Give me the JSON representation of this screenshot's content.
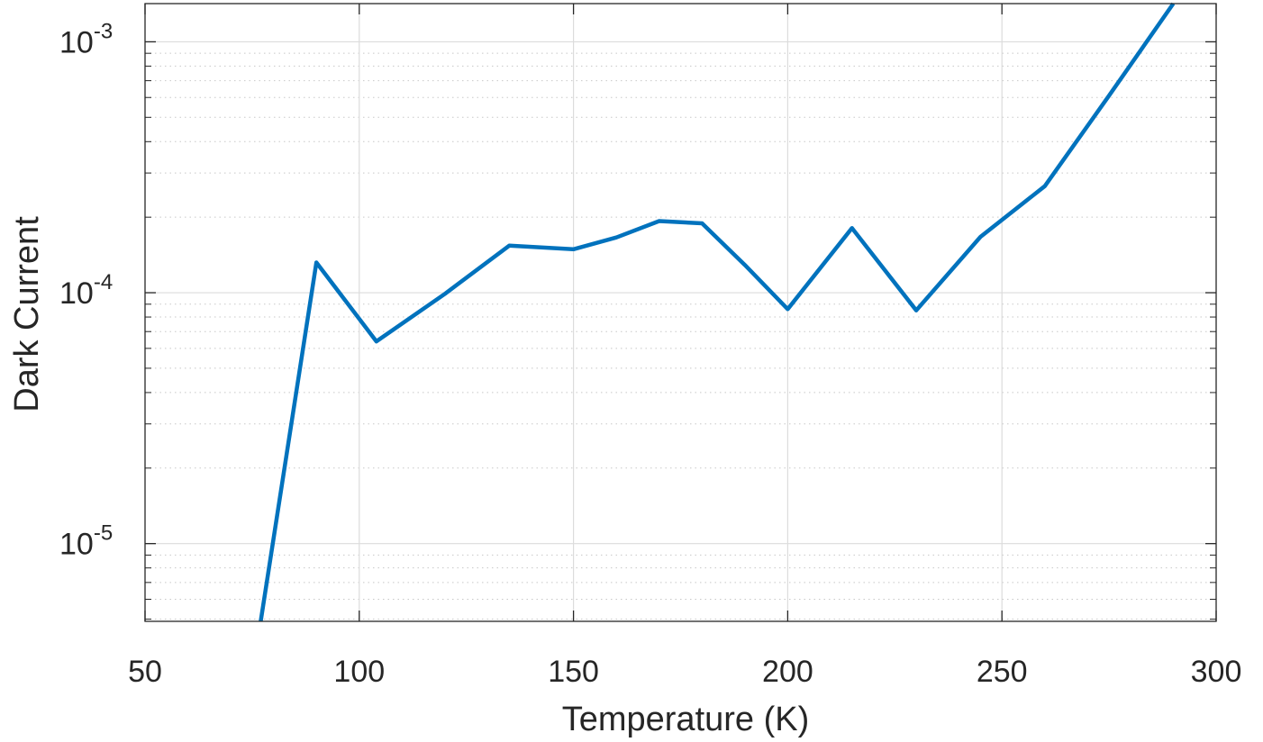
{
  "chart_data": {
    "type": "line",
    "xlabel": "Temperature (K)",
    "ylabel": "Dark Current",
    "xlim": [
      50,
      300
    ],
    "ylim": [
      4.9e-06,
      0.00142
    ],
    "yscale": "log",
    "grid": true,
    "x_ticks": [
      {
        "value": 50,
        "label": "50"
      },
      {
        "value": 100,
        "label": "100"
      },
      {
        "value": 150,
        "label": "150"
      },
      {
        "value": 200,
        "label": "200"
      },
      {
        "value": 250,
        "label": "250"
      },
      {
        "value": 300,
        "label": "300"
      }
    ],
    "y_ticks": [
      {
        "value": 1e-05,
        "base": "10",
        "exponent": "-5"
      },
      {
        "value": 0.0001,
        "base": "10",
        "exponent": "-4"
      },
      {
        "value": 0.001,
        "base": "10",
        "exponent": "-3"
      }
    ],
    "series": [
      {
        "color": "#0072BD",
        "x": [
          77,
          90,
          104,
          120,
          135,
          150,
          160,
          170,
          180,
          190,
          200,
          215,
          230,
          245,
          260,
          275,
          290
        ],
        "y": [
          4.9e-06,
          0.000132,
          6.4e-05,
          9.9e-05,
          0.000154,
          0.000149,
          0.000166,
          0.000193,
          0.000189,
          0.000129,
          8.6e-05,
          0.000181,
          8.5e-05,
          0.000167,
          0.000266,
          0.00061,
          0.00142
        ]
      }
    ]
  }
}
